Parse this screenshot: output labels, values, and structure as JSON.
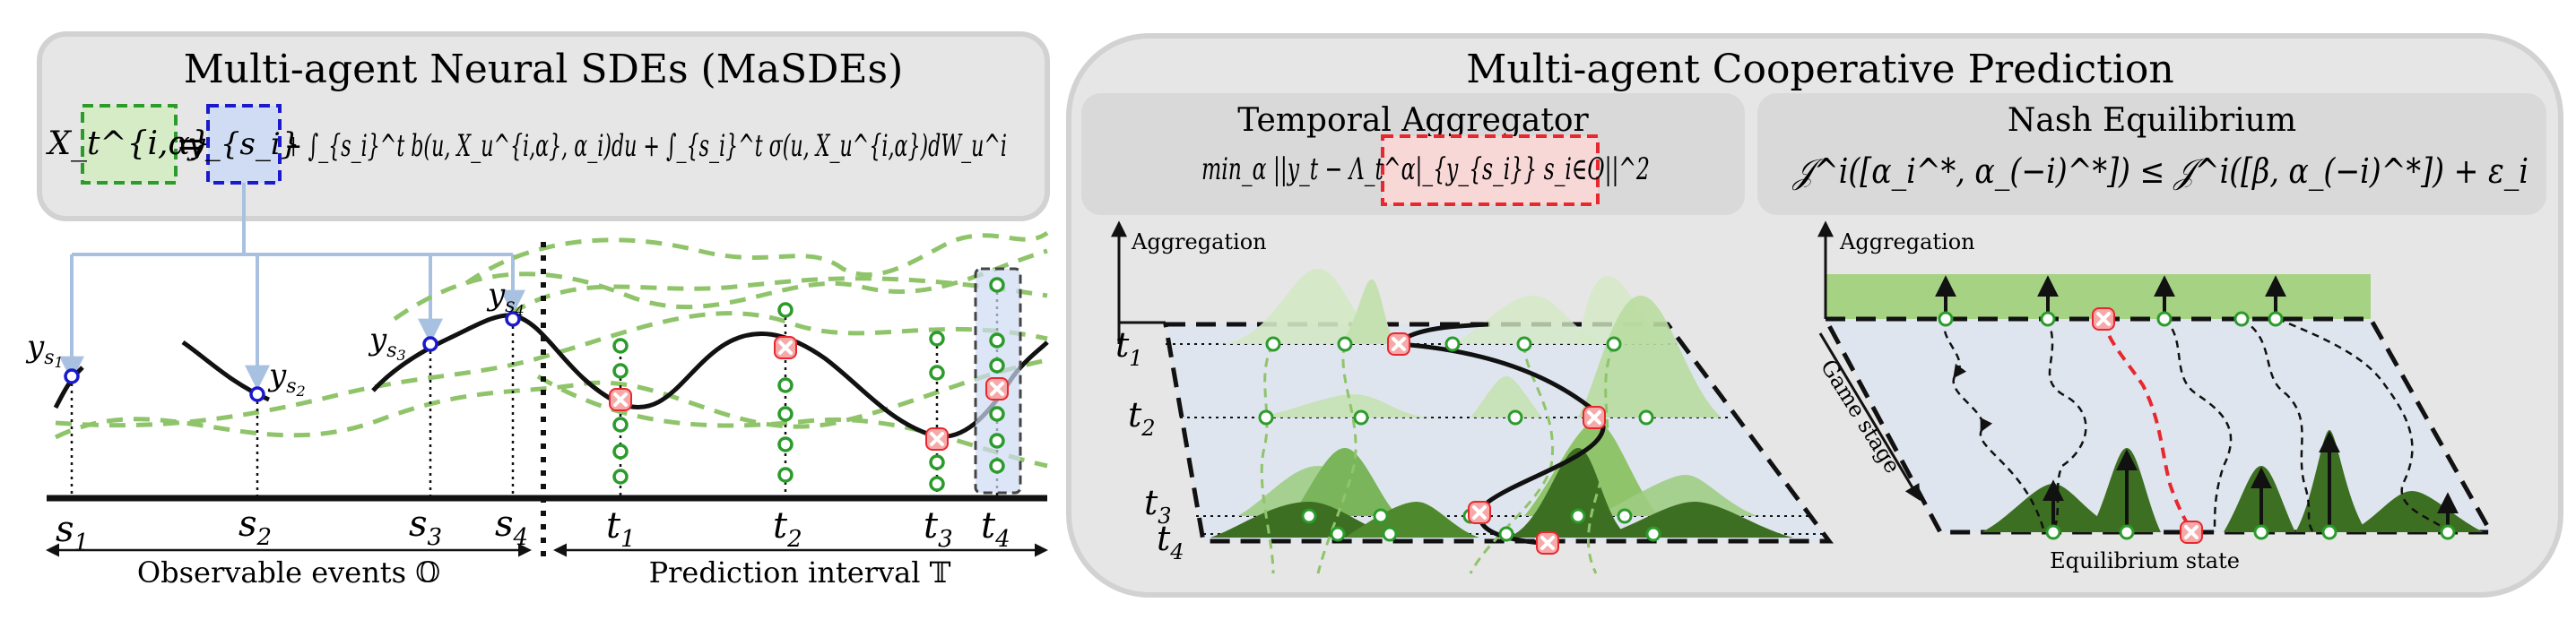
{
  "left_panel": {
    "title": "Multi-agent Neural SDEs (MaSDEs)",
    "equation": {
      "lhs_box": "X_t^{i,α}",
      "equals": "=",
      "ys_box": "y_{s_i}",
      "rest_text": "+ ∫_{s_i}^t b(u, X_u^{i,α}, α_i)du + ∫_{s_i}^t σ(u, X_u^{i,α})dW_u^i"
    },
    "timeline": {
      "observation_labels": [
        "s1",
        "s2",
        "s3",
        "s4"
      ],
      "prediction_labels": [
        "t1",
        "t2",
        "t3",
        "t4"
      ],
      "observed_points": [
        "ys1",
        "ys2",
        "ys3",
        "ys4"
      ],
      "caption_observable": "Observable events 𝕆",
      "caption_prediction": "Prediction interval 𝕋"
    }
  },
  "right_panel": {
    "title": "Multi-agent Cooperative Prediction",
    "temporal_aggregator": {
      "title": "Temporal Aggregator",
      "formula": "min_α ||y_t − Λ_t^α|_{y_{s_i}} s_i∈O||^2"
    },
    "nash": {
      "title": "Nash Equilibrium",
      "formula": "𝒥^i([α_i^*, α_(−i)^*]) ≤ 𝒥^i([β, α_(−i)^*]) + ε_i"
    },
    "left_plot": {
      "axis_label": "Aggregation",
      "time_labels": [
        "t1",
        "t2",
        "t3",
        "t4"
      ]
    },
    "right_plot": {
      "axis_label": "Aggregation",
      "side_label": "Game stage",
      "bottom_label": "Equilibrium state"
    }
  },
  "colors": {
    "panel_bg": "#e6e6e6",
    "panel_border": "#d2d2d2",
    "inner_bg": "#d9d9d9",
    "dashed_green": "#8fc46a",
    "dark_green": "#3d6f22",
    "light_green": "#b9dca0",
    "marker_green": "#2b9b2b",
    "marker_blue": "#1a1acc",
    "red_box": "#e8272e",
    "plane_fill": "#dfe5ee",
    "connector_blue": "#a9c1e0"
  }
}
